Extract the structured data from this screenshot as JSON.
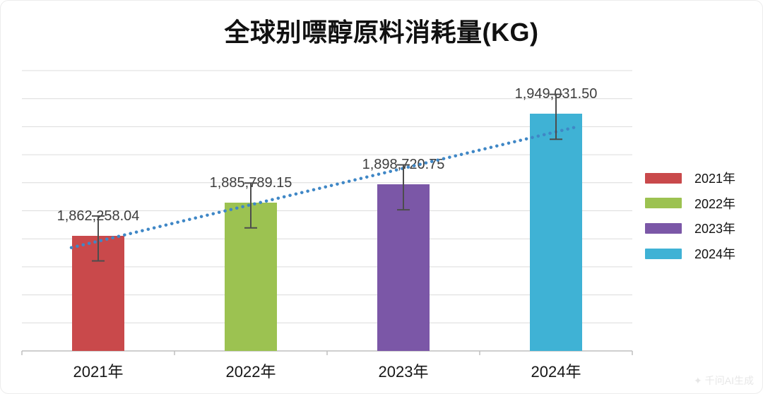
{
  "title": "全球别嘌醇原料消耗量(KG)",
  "chart_data": {
    "type": "bar",
    "title": "全球别嘌醇原料消耗量(KG)",
    "categories": [
      "2021年",
      "2022年",
      "2023年",
      "2024年"
    ],
    "values": [
      1862258.04,
      1885789.15,
      1898720.75,
      1949031.5
    ],
    "data_labels": [
      "1,862,258.04",
      "1,885,789.15",
      "1,898,720.75",
      "1,949,031.50"
    ],
    "series_colors": [
      "#c9494b",
      "#9cc251",
      "#7b57a7",
      "#3fb2d5"
    ],
    "xlabel": "",
    "ylabel": "",
    "ylim": [
      1780000,
      1980000
    ],
    "gridline_step": 20000,
    "grid": true,
    "y_axis_labels_shown": false,
    "legend_position": "right",
    "legend": [
      {
        "label": "2021年",
        "color": "#c9494b"
      },
      {
        "label": "2022年",
        "color": "#9cc251"
      },
      {
        "label": "2023年",
        "color": "#7b57a7"
      },
      {
        "label": "2024年",
        "color": "#3fb2d5"
      }
    ],
    "trendline": {
      "style": "dotted",
      "color": "#3f87c6",
      "spans": "2021年 → 2024年"
    },
    "error_bars": {
      "plus": 14000,
      "minus": 18000,
      "color": "#4d4d4d"
    },
    "grid_color": "#dcdcdc",
    "axis_color": "#bfbfbf"
  },
  "watermark": {
    "logo": "✦",
    "text": "千问AI生成"
  }
}
